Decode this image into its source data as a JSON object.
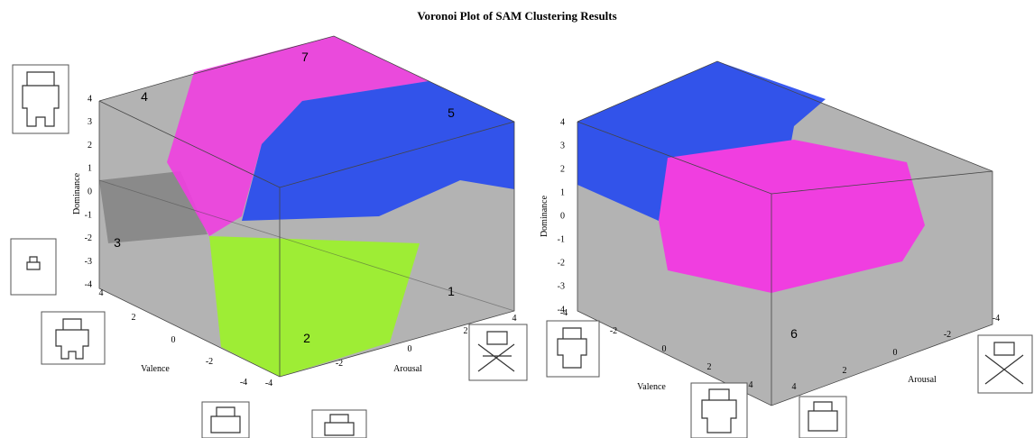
{
  "title": "Voronoi Plot of SAM Clustering Results",
  "panels": [
    {
      "y_label": "Dominance",
      "x_label": "Valence",
      "z_label": "Arousal",
      "dominance_ticks": [
        "4",
        "3",
        "2",
        "1",
        "0",
        "-1",
        "-2",
        "-3",
        "-4"
      ],
      "valence_ticks": [
        "4",
        "2",
        "0",
        "-2",
        "-4"
      ],
      "arousal_ticks": [
        "-4",
        "-2",
        "0",
        "2",
        "4"
      ],
      "regions": [
        "7",
        "4",
        "5",
        "3",
        "1",
        "2"
      ]
    },
    {
      "y_label": "Dominance",
      "x_label": "Valence",
      "z_label": "Arousal",
      "dominance_ticks": [
        "4",
        "3",
        "2",
        "1",
        "0",
        "-1",
        "-2",
        "-3",
        "-4"
      ],
      "valence_ticks": [
        "-4",
        "-2",
        "0",
        "2",
        "4"
      ],
      "arousal_ticks": [
        "-4",
        "-2",
        "0",
        "2",
        "4"
      ],
      "regions": [
        "6"
      ]
    }
  ]
}
